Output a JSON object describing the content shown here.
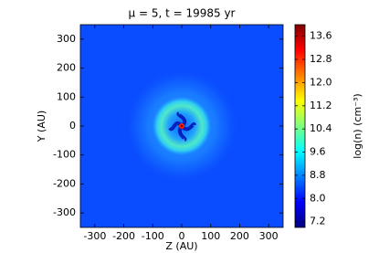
{
  "chart_data": {
    "type": "heatmap",
    "title": "μ = 5, t = 19985 yr",
    "x_label": "Z (AU)",
    "y_label": "Y (AU)",
    "xlim": [
      -350,
      350
    ],
    "xticks": [
      -300,
      -200,
      -100,
      0,
      100,
      200,
      300
    ],
    "ylim": [
      -350,
      350
    ],
    "yticks": [
      -300,
      -200,
      -100,
      0,
      100,
      200,
      300
    ],
    "colormap": "jet",
    "colorbar_label": "log(n) (cm⁻³)",
    "clim": [
      7.0,
      14.0
    ],
    "cticks": [
      7.2,
      {
        "value": 8,
        "label": "8.0"
      },
      8.8,
      9.6,
      10.4,
      11.2,
      {
        "value": 12,
        "label": "12.0"
      },
      12.8,
      13.6
    ]
  }
}
